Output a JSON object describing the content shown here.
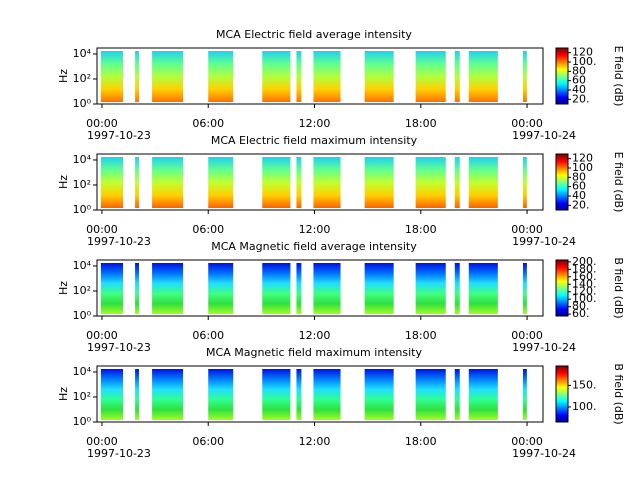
{
  "chart_data": [
    {
      "type": "spectrogram",
      "title": "MCA  Electric field average intensity",
      "ylabel": "Hz",
      "xlim": [
        -0.28,
        24.9
      ],
      "xticks": [
        {
          "value": 0,
          "label": "00:00"
        },
        {
          "value": 6,
          "label": "06:00"
        },
        {
          "value": 12,
          "label": "12:00"
        },
        {
          "value": 18,
          "label": "18:00"
        },
        {
          "value": 24,
          "label": "00:00"
        }
      ],
      "date_labels": [
        {
          "value": 0,
          "label": "1997-10-23"
        },
        {
          "value": 24,
          "label": "1997-10-24"
        }
      ],
      "ylim": [
        1,
        30000
      ],
      "ylog": true,
      "yticks": [
        {
          "value": 1,
          "label": "10⁰"
        },
        {
          "value": 100,
          "label": "10²"
        },
        {
          "value": 10000,
          "label": "10⁴"
        }
      ],
      "segments": [
        [
          -0.06,
          1.19
        ],
        [
          1.87,
          2.09
        ],
        [
          2.83,
          4.58
        ],
        [
          6.0,
          7.41
        ],
        [
          9.05,
          10.64
        ],
        [
          10.98,
          11.26
        ],
        [
          11.94,
          13.47
        ],
        [
          14.83,
          16.47
        ],
        [
          17.71,
          19.41
        ],
        [
          19.92,
          20.2
        ],
        [
          20.71,
          22.35
        ],
        [
          23.77,
          23.99
        ]
      ],
      "segment_colors": [
        "#20d0f0",
        "#60ff90",
        "#b0ff40",
        "#ffd000",
        "#ff7000"
      ],
      "colorbar": {
        "label": "E field (dB)",
        "lim": [
          10,
          130
        ],
        "ticks": [
          {
            "value": 20,
            "label": "20."
          },
          40,
          60,
          80,
          {
            "value": 100,
            "label": "100."
          },
          120
        ]
      }
    },
    {
      "type": "spectrogram",
      "title": "MCA  Electric field maximum intensity",
      "ylabel": "Hz",
      "xlim": [
        -0.28,
        24.9
      ],
      "xticks": [
        {
          "value": 0,
          "label": "00:00"
        },
        {
          "value": 6,
          "label": "06:00"
        },
        {
          "value": 12,
          "label": "12:00"
        },
        {
          "value": 18,
          "label": "18:00"
        },
        {
          "value": 24,
          "label": "00:00"
        }
      ],
      "date_labels": [
        {
          "value": 0,
          "label": "1997-10-23"
        },
        {
          "value": 24,
          "label": "1997-10-24"
        }
      ],
      "ylim": [
        1,
        30000
      ],
      "ylog": true,
      "yticks": [
        {
          "value": 1,
          "label": "10⁰"
        },
        {
          "value": 100,
          "label": "10²"
        },
        {
          "value": 10000,
          "label": "10⁴"
        }
      ],
      "segments": [
        [
          -0.06,
          1.19
        ],
        [
          1.87,
          2.09
        ],
        [
          2.83,
          4.58
        ],
        [
          6.0,
          7.41
        ],
        [
          9.05,
          10.64
        ],
        [
          10.98,
          11.26
        ],
        [
          11.94,
          13.47
        ],
        [
          14.83,
          16.47
        ],
        [
          17.71,
          19.41
        ],
        [
          19.92,
          20.2
        ],
        [
          20.71,
          22.35
        ],
        [
          23.77,
          23.99
        ]
      ],
      "segment_colors": [
        "#20d0f0",
        "#60ff90",
        "#c0ff30",
        "#ffd000",
        "#ff6000"
      ],
      "colorbar": {
        "label": "E field (dB)",
        "lim": [
          10,
          130
        ],
        "ticks": [
          {
            "value": 20,
            "label": "20."
          },
          40,
          60,
          80,
          100,
          120
        ]
      }
    },
    {
      "type": "spectrogram",
      "title": "MCA  Magnetic field average intensity",
      "ylabel": "Hz",
      "xlim": [
        -0.28,
        24.9
      ],
      "xticks": [
        {
          "value": 0,
          "label": "00:00"
        },
        {
          "value": 6,
          "label": "06:00"
        },
        {
          "value": 12,
          "label": "12:00"
        },
        {
          "value": 18,
          "label": "18:00"
        },
        {
          "value": 24,
          "label": "00:00"
        }
      ],
      "date_labels": [
        {
          "value": 0,
          "label": "1997-10-23"
        },
        {
          "value": 24,
          "label": "1997-10-24"
        }
      ],
      "ylim": [
        1,
        30000
      ],
      "ylog": true,
      "yticks": [
        {
          "value": 1,
          "label": "10⁰"
        },
        {
          "value": 100,
          "label": "10²"
        },
        {
          "value": 10000,
          "label": "10⁴"
        }
      ],
      "segments": [
        [
          -0.06,
          1.19
        ],
        [
          1.87,
          2.09
        ],
        [
          2.83,
          4.58
        ],
        [
          6.0,
          7.41
        ],
        [
          9.05,
          10.64
        ],
        [
          10.98,
          11.26
        ],
        [
          11.94,
          13.47
        ],
        [
          14.83,
          16.47
        ],
        [
          17.71,
          19.41
        ],
        [
          19.92,
          20.2
        ],
        [
          20.71,
          22.35
        ],
        [
          23.77,
          23.99
        ]
      ],
      "segment_colors": [
        "#0010e0",
        "#0070ff",
        "#20e0ff",
        "#40ff80",
        "#30e040",
        "#a0ff20"
      ],
      "colorbar": {
        "label": "B field (dB)",
        "lim": [
          55,
          205
        ],
        "ticks": [
          {
            "value": 60,
            "label": "60."
          },
          {
            "value": 80,
            "label": "80."
          },
          {
            "value": 100,
            "label": "100."
          },
          {
            "value": 120,
            "label": "120."
          },
          {
            "value": 140,
            "label": "140."
          },
          {
            "value": 160,
            "label": "160."
          },
          {
            "value": 180,
            "label": "180."
          },
          {
            "value": 200,
            "label": "200."
          }
        ]
      }
    },
    {
      "type": "spectrogram",
      "title": "MCA  Magnetic field maximum intensity",
      "ylabel": "Hz",
      "xlim": [
        -0.28,
        24.9
      ],
      "xticks": [
        {
          "value": 0,
          "label": "00:00"
        },
        {
          "value": 6,
          "label": "06:00"
        },
        {
          "value": 12,
          "label": "12:00"
        },
        {
          "value": 18,
          "label": "18:00"
        },
        {
          "value": 24,
          "label": "00:00"
        }
      ],
      "date_labels": [
        {
          "value": 0,
          "label": "1997-10-23"
        },
        {
          "value": 24,
          "label": "1997-10-24"
        }
      ],
      "ylim": [
        1,
        30000
      ],
      "ylog": true,
      "yticks": [
        {
          "value": 1,
          "label": "10⁰"
        },
        {
          "value": 100,
          "label": "10²"
        },
        {
          "value": 10000,
          "label": "10⁴"
        }
      ],
      "segments": [
        [
          -0.06,
          1.19
        ],
        [
          1.87,
          2.09
        ],
        [
          2.83,
          4.58
        ],
        [
          6.0,
          7.41
        ],
        [
          9.05,
          10.64
        ],
        [
          10.98,
          11.26
        ],
        [
          11.94,
          13.47
        ],
        [
          14.83,
          16.47
        ],
        [
          17.71,
          19.41
        ],
        [
          19.92,
          20.2
        ],
        [
          20.71,
          22.35
        ],
        [
          23.77,
          23.99
        ]
      ],
      "segment_colors": [
        "#0010e0",
        "#0080ff",
        "#20e0ff",
        "#30ff90",
        "#30e040",
        "#a0ff20"
      ],
      "colorbar": {
        "label": "B field (dB)",
        "lim": [
          65,
          195
        ],
        "ticks": [
          {
            "value": 100,
            "label": "100."
          },
          {
            "value": 150,
            "label": "150."
          }
        ]
      }
    }
  ]
}
